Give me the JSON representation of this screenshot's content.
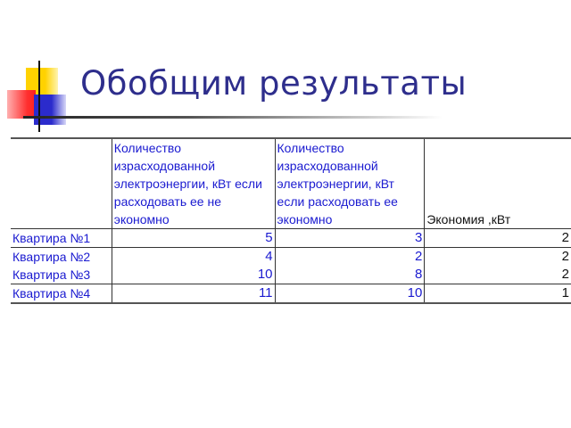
{
  "title": "Обобщим результаты",
  "table": {
    "headers": [
      "",
      "Количество израсходованной электроэнергии, кВт если расходовать ее не экономно",
      "Количество израсходованной электроэнергии, кВт если расходовать ее экономно",
      "Экономия ,кВт"
    ],
    "rows": [
      {
        "label": "Квартира №1",
        "wasteful": "5",
        "economical": "3",
        "savings": "2"
      },
      {
        "label": "Квартира №2",
        "wasteful": "4",
        "economical": "2",
        "savings": "2"
      },
      {
        "label": "Квартира №3",
        "wasteful": "10",
        "economical": "8",
        "savings": "2"
      },
      {
        "label": "Квартира №4",
        "wasteful": "11",
        "economical": "10",
        "savings": "1"
      }
    ]
  },
  "colors": {
    "title": "#2e2e8c",
    "table_text": "#1a1ad0"
  }
}
